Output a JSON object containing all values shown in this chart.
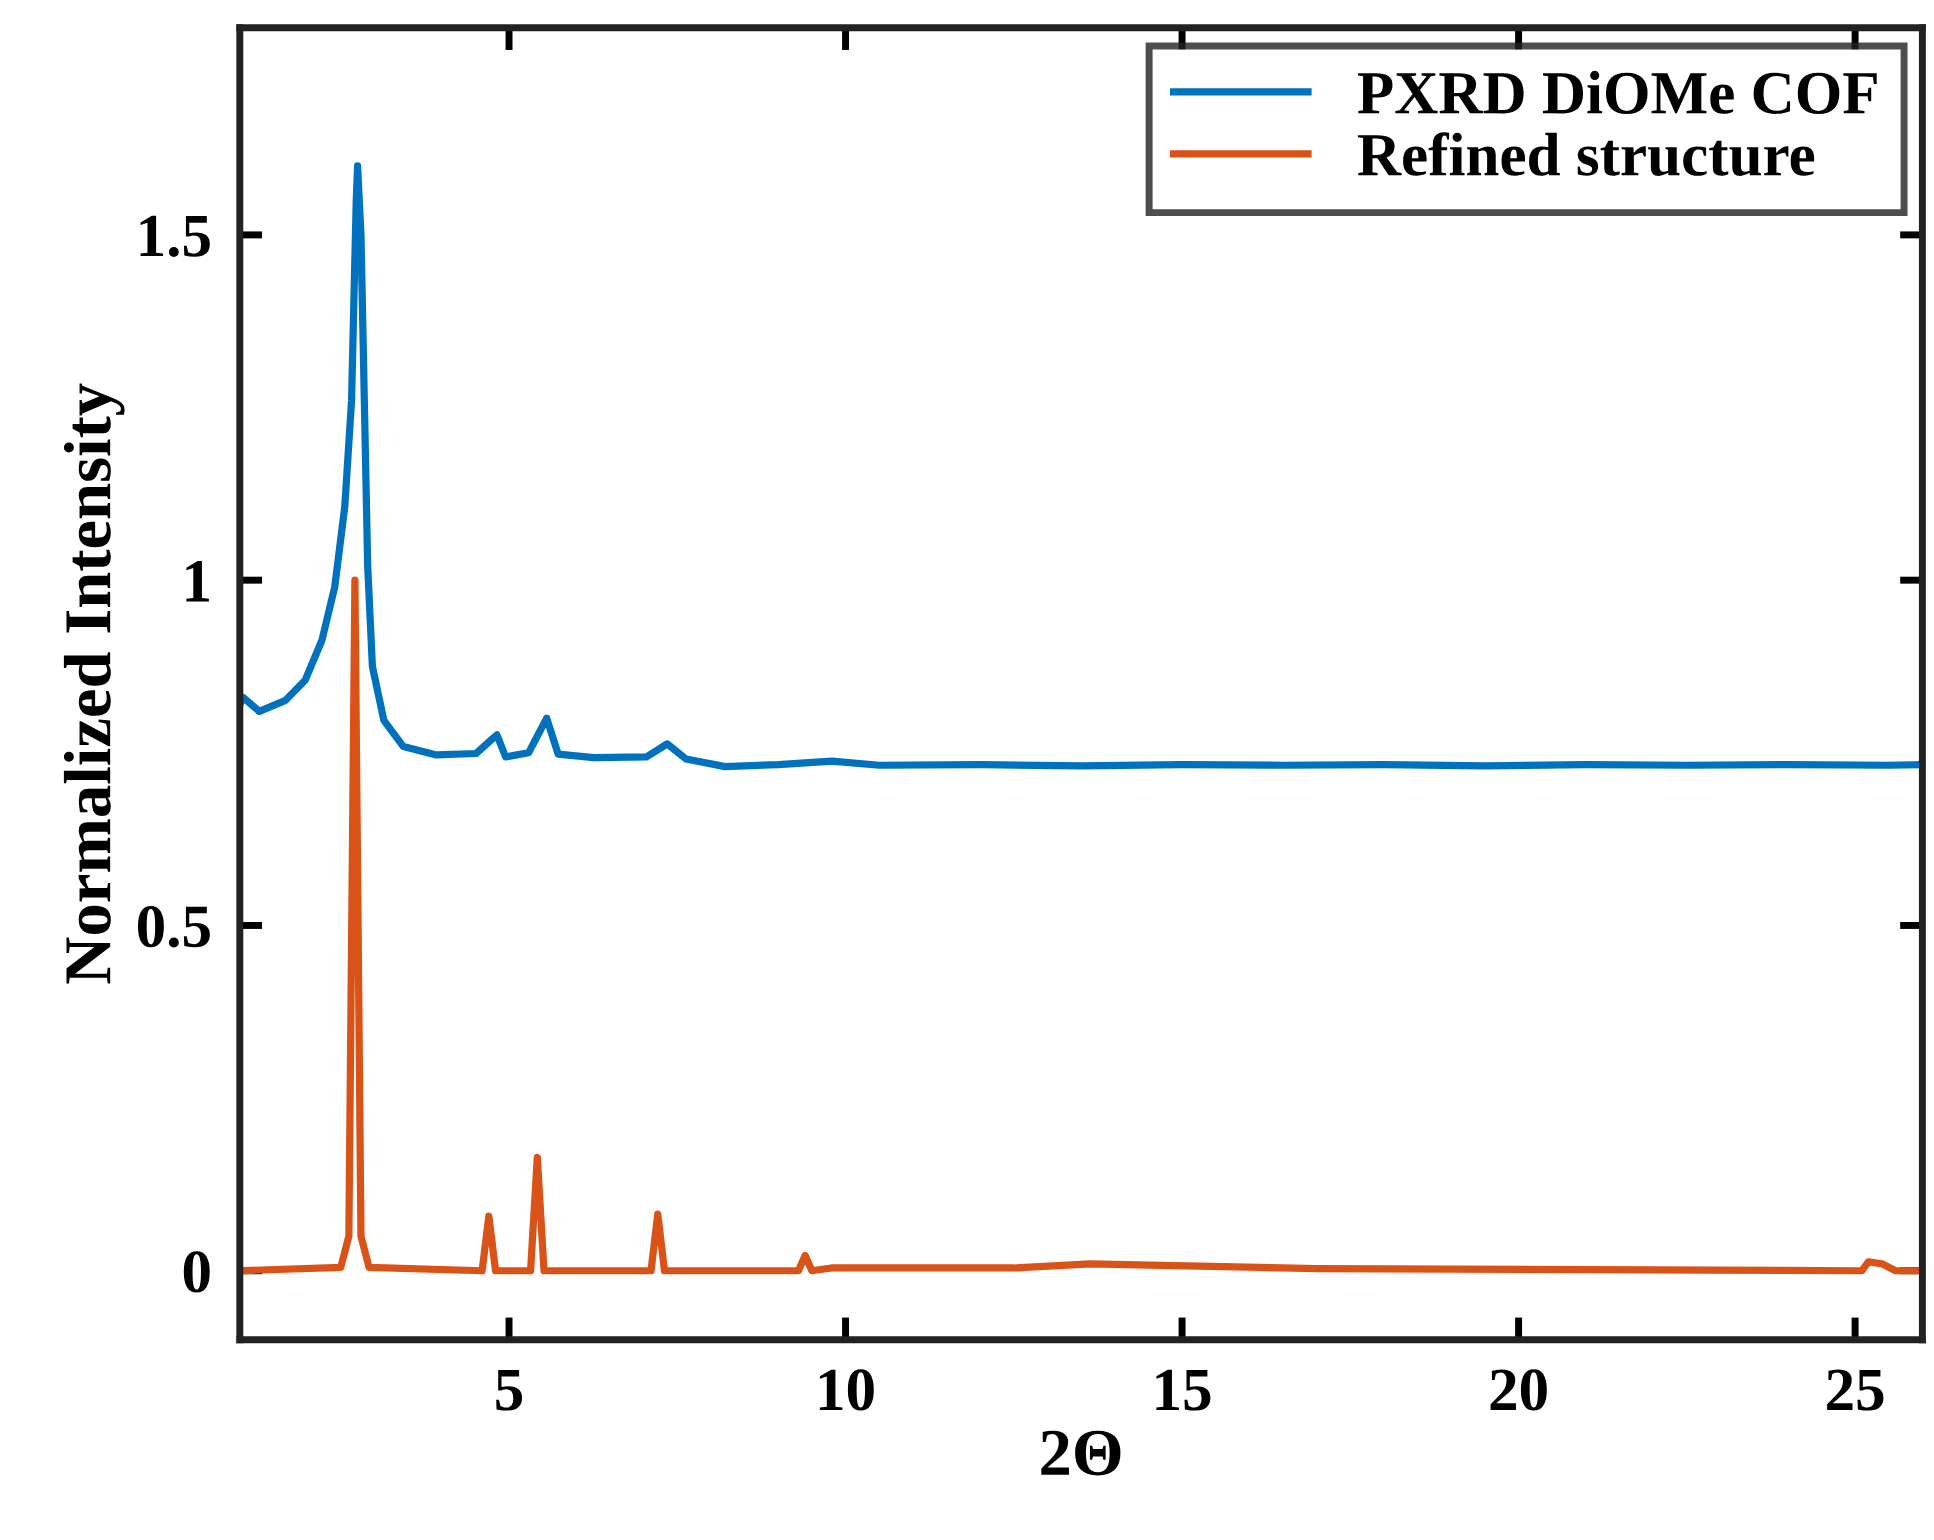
{
  "chart_data": {
    "type": "line",
    "xlabel": "2Θ",
    "ylabel": "Normalized Intensity",
    "xlim": [
      1,
      26
    ],
    "ylim": [
      -0.1,
      1.8
    ],
    "xticks": [
      5,
      10,
      15,
      20,
      25
    ],
    "yticks": [
      0,
      0.5,
      1,
      1.5
    ],
    "grid": false,
    "legend": "top right",
    "marker": "none",
    "line_style": "solid",
    "series": [
      {
        "name": "PXRD DiOMe COF",
        "color": "#0072bd",
        "x": [
          1.0,
          1.05,
          1.29,
          1.68,
          1.97,
          2.22,
          2.41,
          2.56,
          2.66,
          2.73,
          2.75,
          2.8,
          2.85,
          2.9,
          2.97,
          3.14,
          3.43,
          3.92,
          4.51,
          4.75,
          4.82,
          4.95,
          5.29,
          5.56,
          5.73,
          6.26,
          7.04,
          7.35,
          7.63,
          8.21,
          9.0,
          9.8,
          10.5,
          12.0,
          13.5,
          15.0,
          16.5,
          18.0,
          19.5,
          21.0,
          22.5,
          24.0,
          25.5,
          26.0
        ],
        "values": [
          0.82,
          0.83,
          0.81,
          0.826,
          0.855,
          0.913,
          0.99,
          1.107,
          1.26,
          1.55,
          1.6,
          1.5,
          1.26,
          1.02,
          0.875,
          0.797,
          0.759,
          0.747,
          0.749,
          0.77,
          0.776,
          0.744,
          0.75,
          0.8,
          0.748,
          0.743,
          0.744,
          0.763,
          0.741,
          0.73,
          0.733,
          0.738,
          0.732,
          0.733,
          0.731,
          0.733,
          0.732,
          0.733,
          0.731,
          0.733,
          0.732,
          0.733,
          0.732,
          0.733
        ]
      },
      {
        "name": "Refined structure",
        "color": "#d95319",
        "x": [
          1.0,
          2.5,
          2.62,
          2.71,
          2.8,
          2.92,
          4.6,
          4.7,
          4.8,
          5.32,
          5.42,
          5.52,
          7.11,
          7.21,
          7.31,
          9.3,
          9.4,
          9.5,
          9.79,
          11.87,
          12.51,
          13.63,
          17.0,
          25.1,
          25.2,
          25.4,
          25.6,
          26.0
        ],
        "values": [
          0.0,
          0.005,
          0.05,
          1.0,
          0.05,
          0.005,
          0.0,
          0.079,
          0.0,
          0.0,
          0.164,
          0.0,
          0.0,
          0.082,
          0.0,
          0.0,
          0.022,
          0.0,
          0.004,
          0.004,
          0.004,
          0.01,
          0.003,
          0.0,
          0.013,
          0.01,
          0.0,
          0.0
        ]
      }
    ]
  }
}
